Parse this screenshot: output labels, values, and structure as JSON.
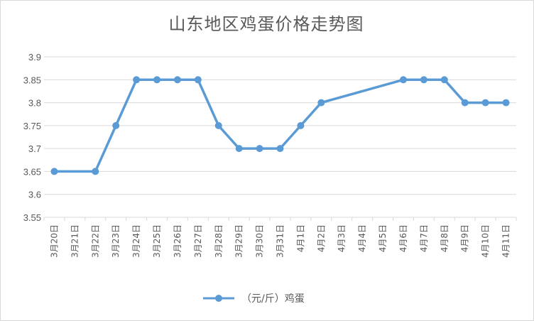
{
  "chart_data": {
    "type": "line",
    "title": "山东地区鸡蛋价格走势图",
    "categories": [
      "3月20日",
      "3月21日",
      "3月22日",
      "3月23日",
      "3月24日",
      "3月25日",
      "3月26日",
      "3月27日",
      "3月28日",
      "3月29日",
      "3月30日",
      "3月31日",
      "4月1日",
      "4月2日",
      "4月3日",
      "4月4日",
      "4月5日",
      "4月6日",
      "4月7日",
      "4月8日",
      "4月9日",
      "4月10日",
      "4月11日"
    ],
    "series": [
      {
        "name": "（元/斤）鸡蛋",
        "color": "#5b9bd5",
        "values": [
          3.65,
          null,
          3.65,
          3.75,
          3.85,
          3.85,
          3.85,
          3.85,
          3.75,
          3.7,
          3.7,
          3.7,
          3.75,
          3.8,
          null,
          null,
          null,
          3.85,
          3.85,
          3.85,
          3.8,
          3.8,
          3.8
        ]
      }
    ],
    "yticks": [
      "3.55",
      "3.6",
      "3.65",
      "3.7",
      "3.75",
      "3.8",
      "3.85",
      "3.9"
    ],
    "ylim": [
      3.55,
      3.9
    ],
    "grid": true,
    "legend": "bottom"
  }
}
